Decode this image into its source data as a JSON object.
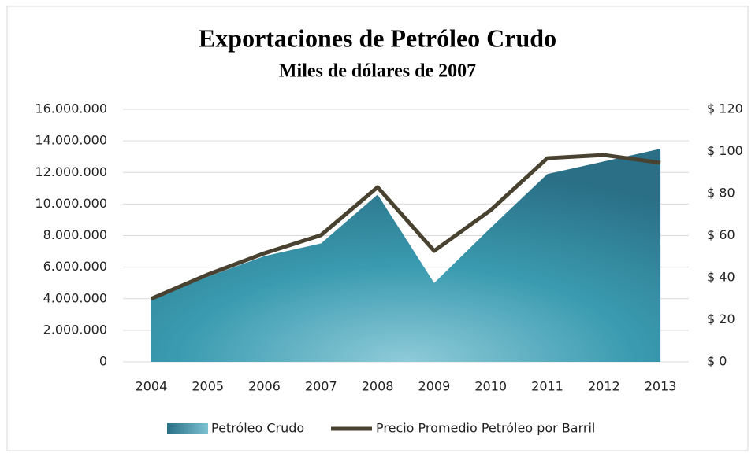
{
  "chart_data": {
    "type": "area-line",
    "title": "Exportaciones de Petróleo Crudo",
    "subtitle": "Miles de dólares de 2007",
    "categories": [
      "2004",
      "2005",
      "2006",
      "2007",
      "2008",
      "2009",
      "2010",
      "2011",
      "2012",
      "2013"
    ],
    "series": [
      {
        "name": "Petróleo Crudo",
        "color": "#3a9bb0",
        "type": "area",
        "axis": "y",
        "values": [
          4000000,
          5400000,
          6700000,
          7500000,
          10600000,
          5000000,
          8500000,
          11900000,
          12700000,
          13500000
        ]
      },
      {
        "name": "Precio Promedio  Petróleo por Barril",
        "color": "#4a4230",
        "type": "line",
        "axis": "y2",
        "values": [
          30,
          41.5,
          51.6,
          60.2,
          83,
          52.7,
          72.1,
          96.8,
          98.3,
          94.6
        ]
      }
    ],
    "ylim": [
      0,
      16000000
    ],
    "yticks": [
      0,
      {
        "value": 2000000,
        "label": "2.000.000"
      },
      {
        "value": 4000000,
        "label": "4.000.000"
      },
      {
        "value": 6000000,
        "label": "6.000.000"
      },
      {
        "value": 8000000,
        "label": "8.000.000"
      },
      {
        "value": 10000000,
        "label": "10.000.000"
      },
      {
        "value": 12000000,
        "label": "12.000.000"
      },
      {
        "value": 14000000,
        "label": "14.000.000"
      },
      {
        "value": 16000000,
        "label": "16.000.000"
      }
    ],
    "y2lim": [
      0,
      120
    ],
    "y2ticks": [
      {
        "value": 0,
        "label": "$ 0"
      },
      {
        "value": 20,
        "label": "$ 20"
      },
      {
        "value": 40,
        "label": "$ 40"
      },
      {
        "value": 60,
        "label": "$ 60"
      },
      {
        "value": 80,
        "label": "$ 80"
      },
      {
        "value": 100,
        "label": "$ 100"
      },
      {
        "value": 120,
        "label": "$ 120"
      }
    ],
    "grid": true,
    "legend": "bottom"
  }
}
